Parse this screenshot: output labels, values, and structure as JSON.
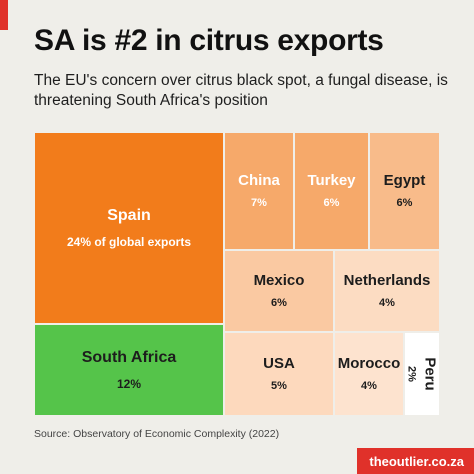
{
  "header": {
    "title": "SA is #2 in citrus exports",
    "subtitle": "The EU's concern over citrus black spot, a fungal disease, is threatening South Africa's position"
  },
  "colors": {
    "accent": "#e0312a",
    "background": "#efeee9"
  },
  "chart_data": {
    "type": "treemap",
    "title": "SA is #2 in citrus exports",
    "subtitle": "The EU's concern over citrus black spot, a fungal disease, is threatening South Africa's position",
    "unit": "% of global exports",
    "items": [
      {
        "name": "Spain",
        "label": "24% of global exports",
        "value": 24,
        "color": "#f27c1b"
      },
      {
        "name": "South Africa",
        "label": "12%",
        "value": 12,
        "color": "#55c44a"
      },
      {
        "name": "China",
        "label": "7%",
        "value": 7,
        "color": "#f6a96a"
      },
      {
        "name": "Turkey",
        "label": "6%",
        "value": 6,
        "color": "#f6a96a"
      },
      {
        "name": "Egypt",
        "label": "6%",
        "value": 6,
        "color": "#f8bb8a"
      },
      {
        "name": "Mexico",
        "label": "6%",
        "value": 6,
        "color": "#fac9a2"
      },
      {
        "name": "Netherlands",
        "label": "4%",
        "value": 4,
        "color": "#fcdcc2"
      },
      {
        "name": "USA",
        "label": "5%",
        "value": 5,
        "color": "#fdd9bd"
      },
      {
        "name": "Morocco",
        "label": "4%",
        "value": 4,
        "color": "#fde3cf"
      },
      {
        "name": "Peru",
        "label": "2%",
        "value": 2,
        "color": "#ffffff"
      }
    ]
  },
  "footer": {
    "source": "Source: Observatory of Economic Complexity (2022)",
    "brand": "theoutlier.co.za"
  }
}
